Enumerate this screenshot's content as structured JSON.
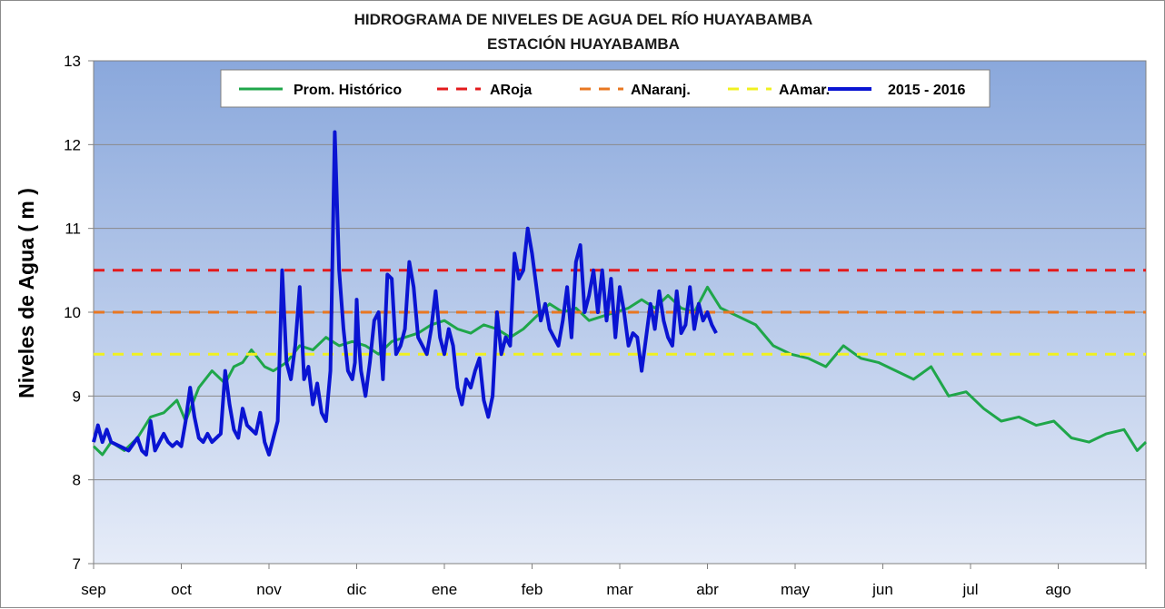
{
  "chart_data": {
    "type": "line",
    "title": "HIDROGRAMA DE NIVELES DE AGUA  DEL RÍO HUAYABAMBA",
    "subtitle": "ESTACIÓN HUAYABAMBA",
    "ylabel": "Niveles de Agua  ( m )",
    "xlabel": "",
    "ylim": [
      7,
      13
    ],
    "yticks": [
      "7",
      "8",
      "9",
      "10",
      "11",
      "12",
      "13"
    ],
    "categories": [
      "sep",
      "oct",
      "nov",
      "dic",
      "ene",
      "feb",
      "mar",
      "abr",
      "may",
      "jun",
      "jul",
      "ago"
    ],
    "x_unit": "month index (0 = start of sep, 12 = end of ago)",
    "grid": true,
    "legend_position": "top",
    "series": [
      {
        "name": "Prom. Histórico",
        "style": "solid",
        "color": "#1fa64a",
        "x": [
          0,
          0.1,
          0.2,
          0.35,
          0.5,
          0.65,
          0.8,
          0.95,
          1.05,
          1.2,
          1.35,
          1.5,
          1.6,
          1.7,
          1.8,
          1.95,
          2.05,
          2.2,
          2.35,
          2.5,
          2.65,
          2.8,
          2.95,
          3.1,
          3.25,
          3.4,
          3.55,
          3.7,
          3.85,
          4.0,
          4.15,
          4.3,
          4.45,
          4.6,
          4.75,
          4.9,
          5.05,
          5.2,
          5.35,
          5.5,
          5.65,
          5.8,
          5.95,
          6.1,
          6.25,
          6.4,
          6.55,
          6.7,
          6.85,
          7.0,
          7.15,
          7.35,
          7.55,
          7.75,
          7.95,
          8.15,
          8.35,
          8.55,
          8.75,
          8.95,
          9.15,
          9.35,
          9.55,
          9.75,
          9.95,
          10.15,
          10.35,
          10.55,
          10.75,
          10.95,
          11.15,
          11.35,
          11.55,
          11.75,
          11.9,
          12.0
        ],
        "values": [
          8.4,
          8.3,
          8.45,
          8.35,
          8.5,
          8.75,
          8.8,
          8.95,
          8.7,
          9.1,
          9.3,
          9.15,
          9.35,
          9.4,
          9.55,
          9.35,
          9.3,
          9.4,
          9.6,
          9.55,
          9.7,
          9.6,
          9.65,
          9.6,
          9.5,
          9.65,
          9.7,
          9.75,
          9.85,
          9.9,
          9.8,
          9.75,
          9.85,
          9.8,
          9.7,
          9.8,
          9.95,
          10.1,
          10.0,
          10.05,
          9.9,
          9.95,
          10.0,
          10.05,
          10.15,
          10.05,
          10.2,
          10.05,
          10.0,
          10.3,
          10.05,
          9.95,
          9.85,
          9.6,
          9.5,
          9.45,
          9.35,
          9.6,
          9.45,
          9.4,
          9.3,
          9.2,
          9.35,
          9.0,
          9.05,
          8.85,
          8.7,
          8.75,
          8.65,
          8.7,
          8.5,
          8.45,
          8.55,
          8.6,
          8.35,
          8.45
        ]
      },
      {
        "name": "ARoja",
        "style": "dashed",
        "color": "#e31a1c",
        "x": [
          0,
          12
        ],
        "values": [
          10.5,
          10.5
        ]
      },
      {
        "name": "ANaranj.",
        "style": "dashed",
        "color": "#e87722",
        "x": [
          0,
          12
        ],
        "values": [
          10.0,
          10.0
        ]
      },
      {
        "name": "AAmar.",
        "style": "dashed",
        "color": "#f0f020",
        "x": [
          0,
          12
        ],
        "values": [
          9.5,
          9.5
        ]
      },
      {
        "name": "2015 - 2016",
        "style": "solid",
        "color": "#0a14d2",
        "x": [
          0,
          0.05,
          0.1,
          0.15,
          0.2,
          0.3,
          0.4,
          0.5,
          0.55,
          0.6,
          0.65,
          0.7,
          0.75,
          0.8,
          0.85,
          0.9,
          0.95,
          1.0,
          1.05,
          1.1,
          1.15,
          1.2,
          1.25,
          1.3,
          1.35,
          1.4,
          1.45,
          1.5,
          1.55,
          1.6,
          1.65,
          1.7,
          1.75,
          1.8,
          1.85,
          1.9,
          1.95,
          2.0,
          2.05,
          2.1,
          2.15,
          2.2,
          2.25,
          2.3,
          2.35,
          2.4,
          2.45,
          2.5,
          2.55,
          2.6,
          2.65,
          2.7,
          2.75,
          2.8,
          2.85,
          2.9,
          2.95,
          2.98,
          3.0,
          3.02,
          3.05,
          3.1,
          3.15,
          3.2,
          3.25,
          3.3,
          3.35,
          3.4,
          3.45,
          3.5,
          3.55,
          3.6,
          3.65,
          3.7,
          3.75,
          3.8,
          3.85,
          3.9,
          3.95,
          4.0,
          4.05,
          4.1,
          4.15,
          4.2,
          4.25,
          4.3,
          4.35,
          4.4,
          4.45,
          4.5,
          4.55,
          4.6,
          4.65,
          4.7,
          4.75,
          4.8,
          4.85,
          4.9,
          4.95,
          5.0,
          5.05,
          5.1,
          5.15,
          5.2,
          5.25,
          5.3,
          5.35,
          5.4,
          5.45,
          5.5,
          5.55,
          5.6,
          5.65,
          5.7,
          5.75,
          5.8,
          5.85,
          5.9,
          5.95,
          6.0,
          6.05,
          6.1,
          6.15,
          6.2,
          6.25,
          6.3,
          6.35,
          6.4,
          6.45,
          6.5,
          6.55,
          6.6,
          6.65,
          6.7,
          6.75,
          6.8,
          6.85,
          6.9,
          6.95,
          7.0,
          7.05,
          7.1
        ],
        "values": [
          8.45,
          8.65,
          8.45,
          8.6,
          8.45,
          8.4,
          8.35,
          8.5,
          8.35,
          8.3,
          8.7,
          8.35,
          8.45,
          8.55,
          8.45,
          8.4,
          8.45,
          8.4,
          8.7,
          9.1,
          8.75,
          8.5,
          8.45,
          8.55,
          8.45,
          8.5,
          8.55,
          9.3,
          8.9,
          8.6,
          8.5,
          8.85,
          8.65,
          8.6,
          8.55,
          8.8,
          8.45,
          8.3,
          8.5,
          8.7,
          10.5,
          9.4,
          9.2,
          9.6,
          10.3,
          9.2,
          9.35,
          8.9,
          9.15,
          8.8,
          8.7,
          9.3,
          12.15,
          10.5,
          9.8,
          9.3,
          9.2,
          9.4,
          10.15,
          9.7,
          9.3,
          9.0,
          9.4,
          9.9,
          10.0,
          9.2,
          10.45,
          10.4,
          9.5,
          9.6,
          9.8,
          10.6,
          10.3,
          9.7,
          9.6,
          9.5,
          9.8,
          10.25,
          9.7,
          9.5,
          9.8,
          9.6,
          9.1,
          8.9,
          9.2,
          9.1,
          9.3,
          9.45,
          8.95,
          8.75,
          9.0,
          10.0,
          9.5,
          9.7,
          9.6,
          10.7,
          10.4,
          10.5,
          11.0,
          10.7,
          10.3,
          9.9,
          10.1,
          9.8,
          9.7,
          9.6,
          9.9,
          10.3,
          9.7,
          10.6,
          10.8,
          10.0,
          10.2,
          10.5,
          10.0,
          10.5,
          9.9,
          10.4,
          9.7,
          10.3,
          10.0,
          9.6,
          9.75,
          9.7,
          9.3,
          9.7,
          10.1,
          9.8,
          10.25,
          9.9,
          9.7,
          9.6,
          10.25,
          9.75,
          9.85,
          10.3,
          9.8,
          10.1,
          9.9,
          10.0,
          9.85,
          9.75
        ]
      }
    ]
  }
}
